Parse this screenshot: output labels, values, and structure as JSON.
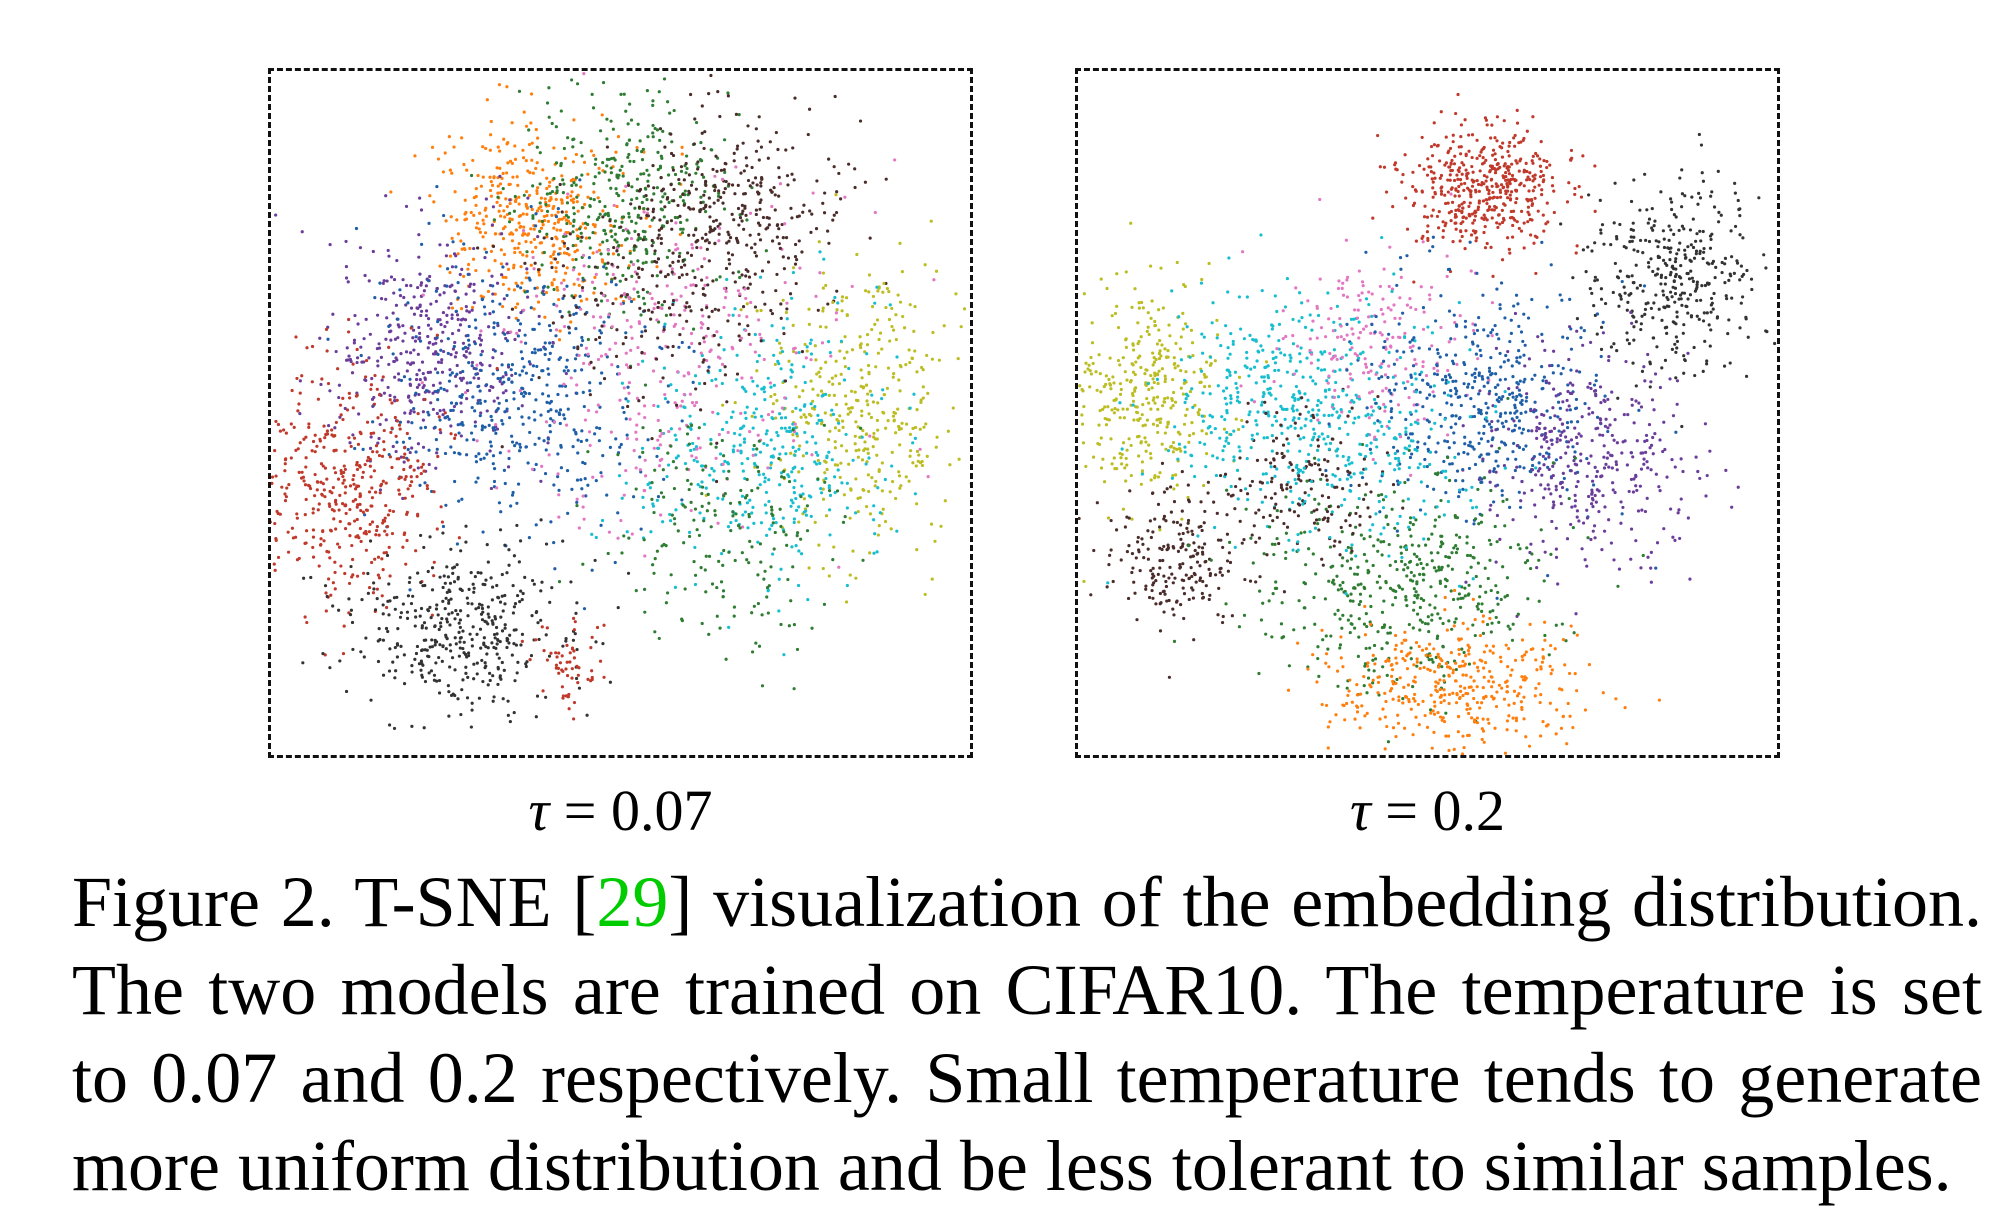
{
  "figure": {
    "panels": [
      {
        "id": "left",
        "subcaption": {
          "symbol": "τ",
          "eq": " = ",
          "value": "0.07"
        }
      },
      {
        "id": "right",
        "subcaption": {
          "symbol": "τ",
          "eq": " = ",
          "value": "0.2"
        }
      }
    ],
    "class_colors": [
      "#c0392b",
      "#ff7f0e",
      "#1f5fa8",
      "#6a3d9a",
      "#2e7d32",
      "#4a2c2a",
      "#17becf",
      "#bcbd22",
      "#e377c2",
      "#333333"
    ],
    "caption": {
      "line1_a": "Figure 2. T-SNE [",
      "line1_cite": "29",
      "line1_b": "] visualization of the embedding distribution.",
      "line2": "The two models are trained on CIFAR10.  The temperature is set",
      "line3": "to 0.07 and 0.2 respectively.  Small temperature tends to generate",
      "line4": "more uniform distribution and be less tolerant to similar samples."
    }
  }
}
